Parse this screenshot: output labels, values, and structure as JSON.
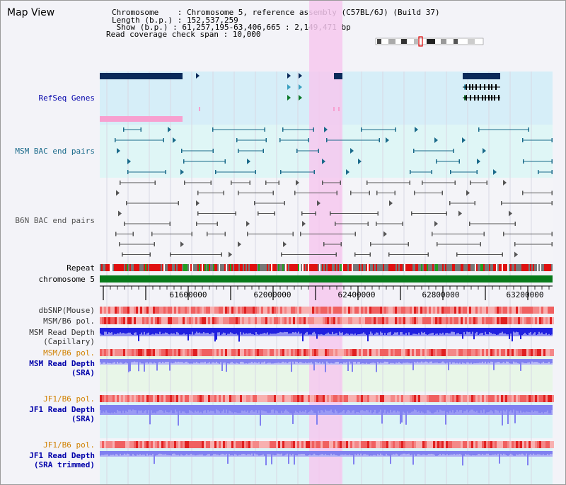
{
  "view_title": "Map View",
  "info": {
    "chromosome": "Chromosome    : Chromosome 5, reference assembly (C57BL/6J) (Build 37)",
    "length": "Length (b.p.) : 152,537,259",
    "show": " Show (b.p.) : 61,257,195-63,406,665 : 2,149,471 bp",
    "coverage": "Read coverage check span : 10,000"
  },
  "tracks": {
    "refseq": "RefSeq Genes",
    "msm_bac": "MSM BAC end pairs",
    "b6n_bac": "B6N BAC end pairs",
    "repeat": "Repeat",
    "chromosome": "chromosome 5",
    "dbsnp": "dbSNP(Mouse)",
    "msm_b6_pol_1": "MSM/B6 pol.",
    "msm_depth_cap_1": "MSM Read Depth",
    "msm_depth_cap_2": "(Capillary)",
    "msm_b6_pol_2": "MSM/B6 pol.",
    "msm_depth_sra_1": "MSM Read Depth",
    "msm_depth_sra_2": "(SRA)",
    "jf1_b6_pol_1": "JF1/B6 pol.",
    "jf1_depth_sra_1": "JF1 Read Depth",
    "jf1_depth_sra_2": "(SRA)",
    "jf1_b6_pol_2": "JF1/B6 pol.",
    "jf1_depth_trim_1": "JF1 Read Depth",
    "jf1_depth_trim_2": "(SRA trimmed)"
  },
  "axis": {
    "ticks": [
      "61600000",
      "62000000",
      "62400000",
      "62800000",
      "63200000"
    ]
  },
  "colors": {
    "refseq_bg": "#d6eef8",
    "msm_bac_bg": "#dff6f6",
    "highlight": "#f6c8ee",
    "gene_dark": "#0a2a5a",
    "msm_bac_line": "#1a6a8a",
    "b6n_line": "#555555",
    "chromosome_bar": "#087a1a",
    "depth_blue": "#2020e0",
    "depth_light": "#8080f0",
    "label_blue": "#0000aa",
    "label_orange": "#d08000"
  }
}
